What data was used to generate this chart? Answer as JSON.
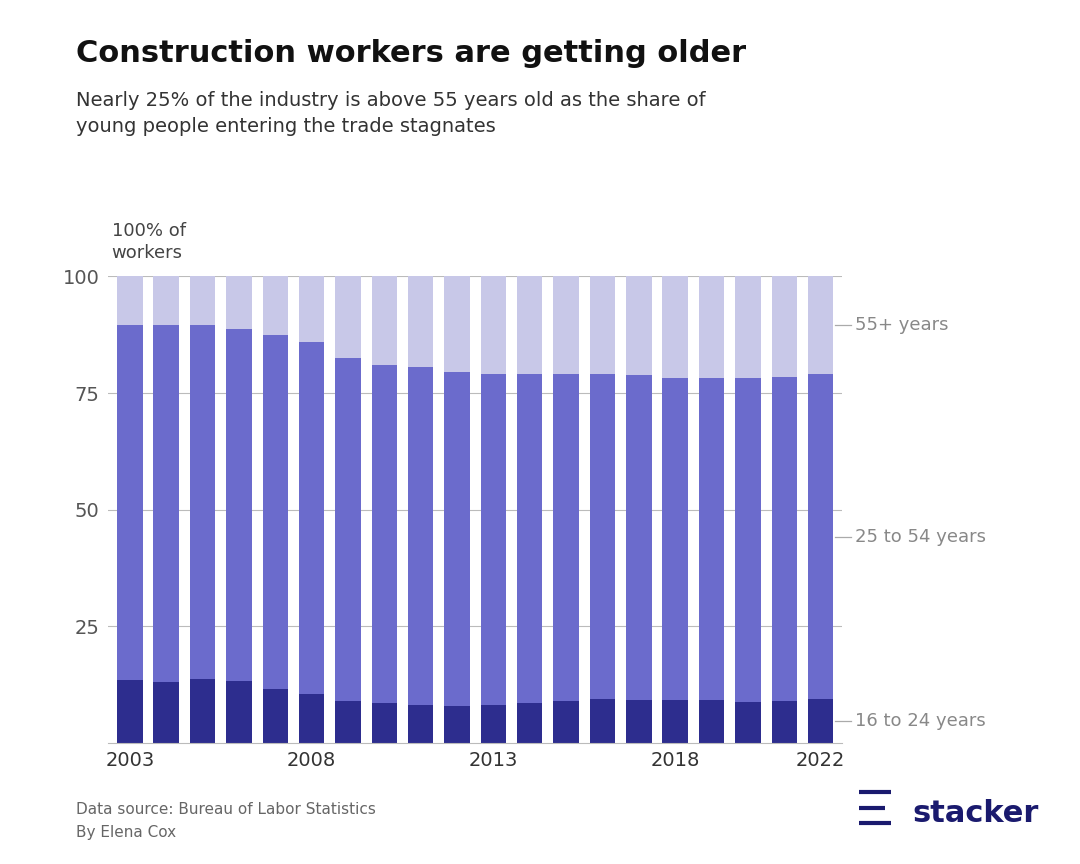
{
  "years": [
    2003,
    2004,
    2005,
    2006,
    2007,
    2008,
    2009,
    2010,
    2011,
    2012,
    2013,
    2014,
    2015,
    2016,
    2017,
    2018,
    2019,
    2020,
    2021,
    2022
  ],
  "age_16_24": [
    13.5,
    13.0,
    13.8,
    13.2,
    11.5,
    10.5,
    9.0,
    8.5,
    8.2,
    8.0,
    8.2,
    8.5,
    9.0,
    9.5,
    9.3,
    9.3,
    9.3,
    8.8,
    9.0,
    9.5
  ],
  "age_25_54": [
    76.0,
    76.5,
    75.7,
    75.5,
    76.0,
    75.5,
    73.5,
    72.5,
    72.5,
    71.5,
    71.0,
    70.5,
    70.0,
    69.5,
    69.5,
    69.0,
    69.0,
    69.5,
    69.5,
    69.5
  ],
  "age_55plus": [
    10.5,
    10.5,
    10.5,
    11.3,
    12.5,
    14.0,
    17.5,
    19.0,
    19.3,
    20.5,
    20.8,
    21.0,
    21.0,
    21.0,
    21.2,
    21.7,
    21.7,
    21.7,
    21.5,
    21.0
  ],
  "color_16_24": "#2d2d8e",
  "color_25_54": "#6b6bcc",
  "color_55plus": "#c8c8e8",
  "title": "Construction workers are getting older",
  "subtitle": "Nearly 25% of the industry is above 55 years old as the share of\nyoung people entering the trade stagnates",
  "ylabel": "100% of\nworkers",
  "label_16_24": "16 to 24 years",
  "label_25_54": "25 to 54 years",
  "label_55plus": "55+ years",
  "data_source": "Data source: Bureau of Labor Statistics",
  "author": "By Elena Cox",
  "background_color": "#ffffff",
  "yticks": [
    25,
    50,
    75,
    100
  ],
  "ylim": [
    0,
    100
  ],
  "xtick_show": [
    2003,
    2008,
    2013,
    2018,
    2022
  ]
}
